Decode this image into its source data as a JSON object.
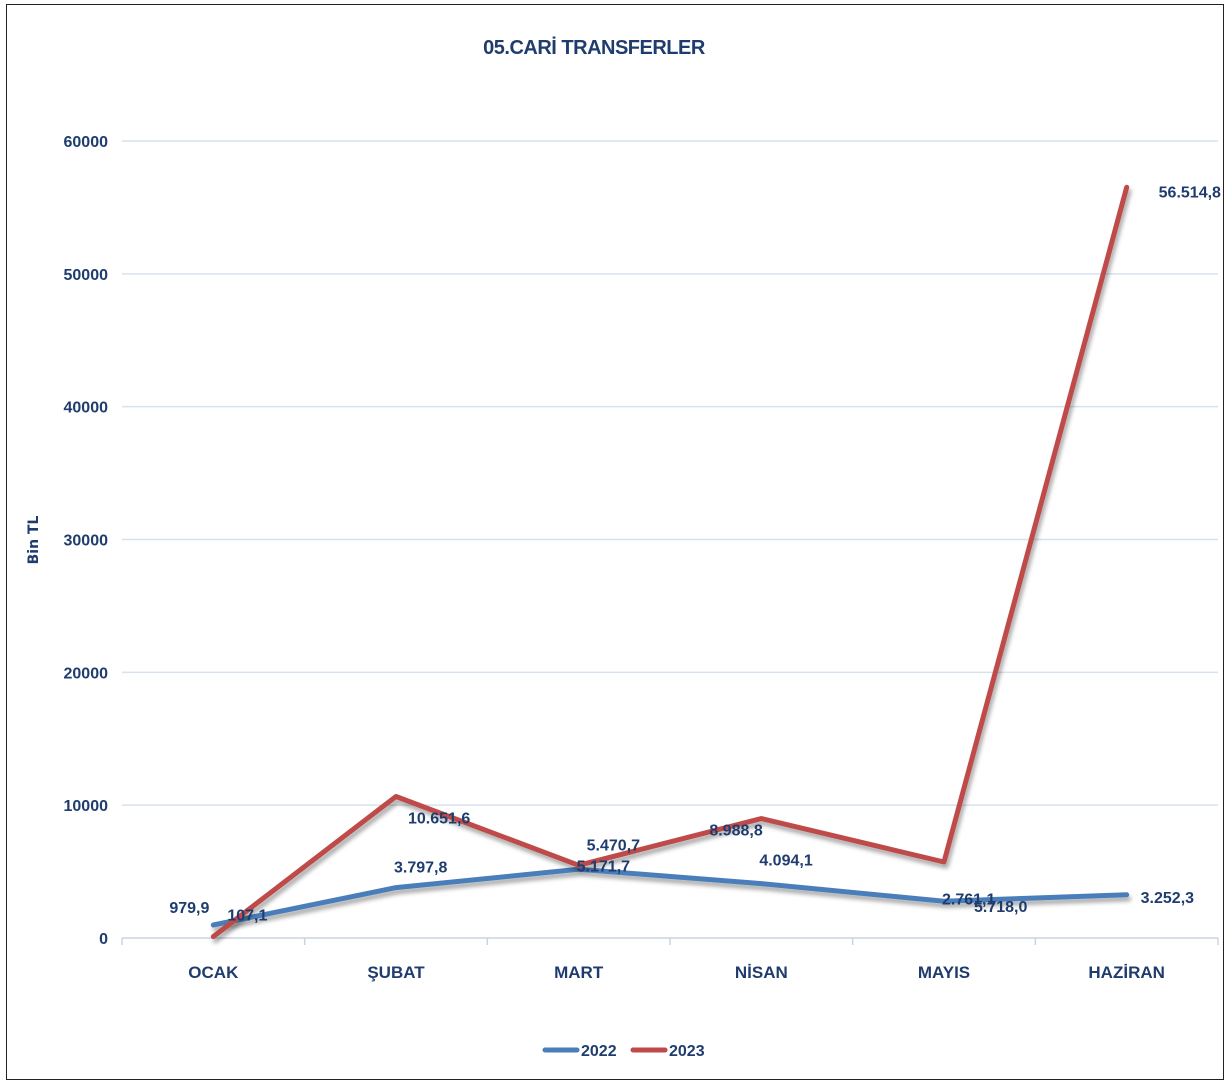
{
  "chart_data": {
    "type": "line",
    "title": "05.CARİ TRANSFERLER",
    "ylabel": "Bin TL",
    "xlabel": "",
    "categories": [
      "OCAK",
      "ŞUBAT",
      "MART",
      "NİSAN",
      "MAYIS",
      "HAZİRAN"
    ],
    "ylim": [
      0,
      60000
    ],
    "yticks": [
      0,
      10000,
      20000,
      30000,
      40000,
      50000,
      60000
    ],
    "ytick_labels": [
      "0",
      "10000",
      "20000",
      "30000",
      "40000",
      "50000",
      "60000"
    ],
    "grid": true,
    "legend": "bottom",
    "series": [
      {
        "name": "2022",
        "color": "#4a7ebb",
        "values": [
          979.9,
          3797.8,
          5171.7,
          4094.1,
          2761.1,
          3252.3
        ],
        "labels": [
          "979,9",
          "3.797,8",
          "5.171,7",
          "4.094,1",
          "2.761,1",
          "3.252,3"
        ]
      },
      {
        "name": "2023",
        "color": "#be4b48",
        "values": [
          107.1,
          10651.6,
          5470.7,
          8988.8,
          5718.0,
          56514.8
        ],
        "labels": [
          "107,1",
          "10.651,6",
          "5.470,7",
          "8.988,8",
          "5.718,0",
          "56.514,8"
        ]
      }
    ]
  }
}
